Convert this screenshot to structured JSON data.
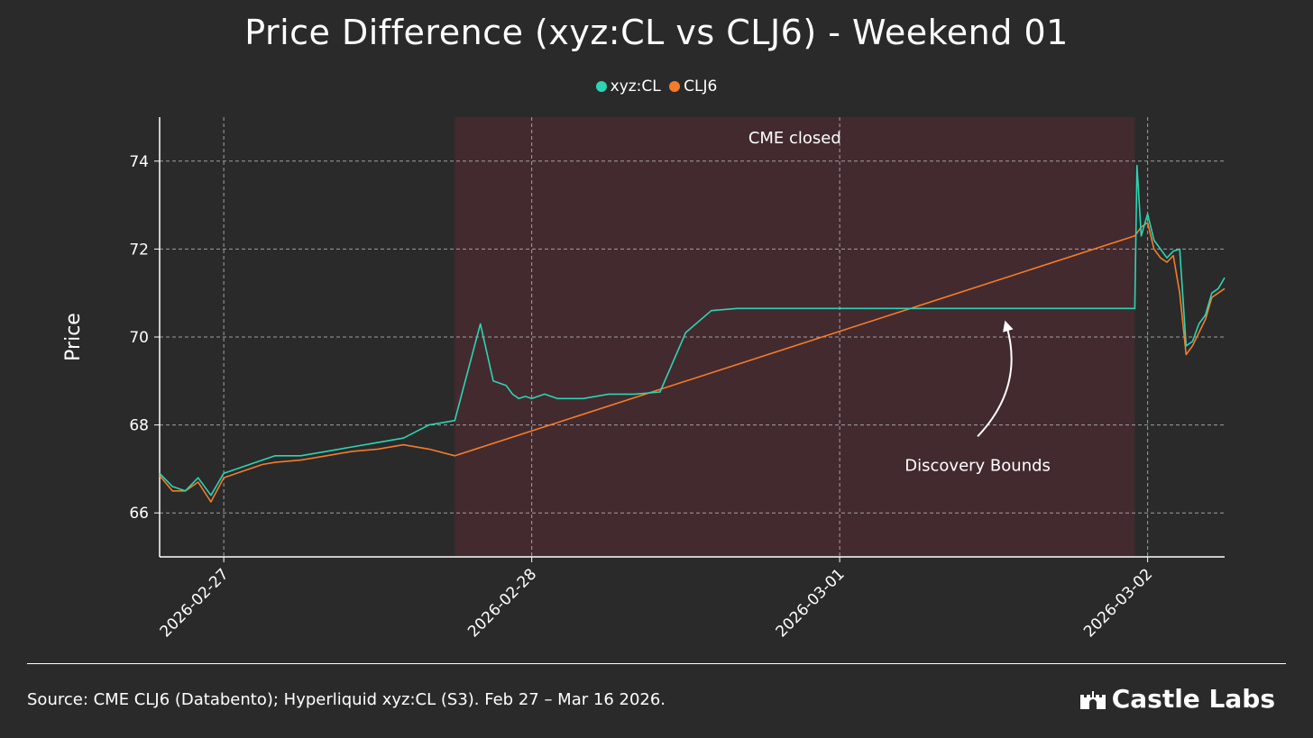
{
  "colors": {
    "background": "#2a2a2a",
    "xyz": "#2dd4b4",
    "clj6": "#f47c2a",
    "shade": "#432a2f",
    "grid": "#bdbdbd",
    "text": "#ffffff"
  },
  "footer": {
    "source": "Source: CME CLJ6 (Databento); Hyperliquid xyz:CL (S3). Feb 27 – Mar 16 2026.",
    "brand": "Castle Labs",
    "brand_icon": "castle-icon"
  },
  "chart_data": {
    "type": "line",
    "title": "Price Difference (xyz:CL vs CLJ6) - Weekend 01",
    "xlabel": "",
    "ylabel": "Price",
    "xlim": [
      "2026-02-26T19:00",
      "2026-03-02T06:00"
    ],
    "ylim": [
      65,
      75
    ],
    "yticks": [
      66,
      68,
      70,
      72,
      74
    ],
    "xticks": [
      "2026-02-27",
      "2026-02-28",
      "2026-03-01",
      "2026-03-02"
    ],
    "grid": true,
    "legend": {
      "position": "top-center",
      "entries": [
        "xyz:CL",
        "CLJ6"
      ]
    },
    "shaded_region": {
      "start": "2026-02-27T18:00",
      "end": "2026-03-01T23:00",
      "label": "CME closed"
    },
    "annotation": {
      "text": "Discovery Bounds",
      "points_to": {
        "x": "2026-03-01T13:00",
        "y": 70.3
      }
    },
    "series": [
      {
        "name": "xyz:CL",
        "x": [
          "2026-02-26T19:00",
          "2026-02-26T20:00",
          "2026-02-26T21:00",
          "2026-02-26T22:00",
          "2026-02-26T23:00",
          "2026-02-27T00:00",
          "2026-02-27T01:00",
          "2026-02-27T02:00",
          "2026-02-27T03:00",
          "2026-02-27T04:00",
          "2026-02-27T06:00",
          "2026-02-27T08:00",
          "2026-02-27T10:00",
          "2026-02-27T12:00",
          "2026-02-27T14:00",
          "2026-02-27T16:00",
          "2026-02-27T18:00",
          "2026-02-27T20:00",
          "2026-02-27T21:00",
          "2026-02-27T22:00",
          "2026-02-27T22:30",
          "2026-02-27T23:00",
          "2026-02-27T23:30",
          "2026-02-28T00:00",
          "2026-02-28T01:00",
          "2026-02-28T02:00",
          "2026-02-28T04:00",
          "2026-02-28T06:00",
          "2026-02-28T08:00",
          "2026-02-28T10:00",
          "2026-02-28T12:00",
          "2026-02-28T14:00",
          "2026-02-28T16:00",
          "2026-02-28T18:00",
          "2026-02-28T20:00",
          "2026-02-28T22:00",
          "2026-02-28T23:00",
          "2026-02-28T23:30",
          "2026-03-01T00:00",
          "2026-03-01T01:00",
          "2026-03-01T02:00",
          "2026-03-01T04:00",
          "2026-03-01T08:00",
          "2026-03-01T12:00",
          "2026-03-01T16:00",
          "2026-03-01T20:00",
          "2026-03-01T23:00",
          "2026-03-01T23:10",
          "2026-03-01T23:30",
          "2026-03-02T00:00",
          "2026-03-02T00:30",
          "2026-03-02T01:00",
          "2026-03-02T01:30",
          "2026-03-02T02:00",
          "2026-03-02T02:30",
          "2026-03-02T03:00",
          "2026-03-02T03:30",
          "2026-03-02T04:00",
          "2026-03-02T04:30",
          "2026-03-02T05:00",
          "2026-03-02T05:30",
          "2026-03-02T06:00"
        ],
        "values": [
          66.9,
          66.6,
          66.5,
          66.8,
          66.4,
          66.9,
          67.0,
          67.1,
          67.2,
          67.3,
          67.3,
          67.4,
          67.5,
          67.6,
          67.7,
          68.0,
          68.1,
          70.3,
          69.0,
          68.9,
          68.7,
          68.6,
          68.65,
          68.6,
          68.7,
          68.6,
          68.6,
          68.7,
          68.7,
          68.75,
          70.1,
          70.6,
          70.65,
          70.65,
          70.65,
          70.65,
          70.65,
          70.65,
          70.65,
          70.65,
          70.65,
          70.65,
          70.65,
          70.65,
          70.65,
          70.65,
          70.65,
          73.9,
          72.3,
          72.8,
          72.2,
          72.0,
          71.8,
          71.95,
          72.0,
          69.8,
          69.9,
          70.3,
          70.5,
          71.0,
          71.1,
          71.35
        ]
      },
      {
        "name": "CLJ6",
        "x": [
          "2026-02-26T19:00",
          "2026-02-26T20:00",
          "2026-02-26T21:00",
          "2026-02-26T22:00",
          "2026-02-26T23:00",
          "2026-02-27T00:00",
          "2026-02-27T01:00",
          "2026-02-27T02:00",
          "2026-02-27T03:00",
          "2026-02-27T04:00",
          "2026-02-27T06:00",
          "2026-02-27T08:00",
          "2026-02-27T10:00",
          "2026-02-27T12:00",
          "2026-02-27T14:00",
          "2026-02-27T16:00",
          "2026-02-27T18:00",
          "2026-03-01T23:00",
          "2026-03-01T23:30",
          "2026-03-02T00:00",
          "2026-03-02T00:30",
          "2026-03-02T01:00",
          "2026-03-02T01:30",
          "2026-03-02T02:00",
          "2026-03-02T02:30",
          "2026-03-02T03:00",
          "2026-03-02T03:30",
          "2026-03-02T04:00",
          "2026-03-02T04:30",
          "2026-03-02T05:00",
          "2026-03-02T05:30",
          "2026-03-02T06:00"
        ],
        "values": [
          66.85,
          66.5,
          66.5,
          66.7,
          66.25,
          66.8,
          66.9,
          67.0,
          67.1,
          67.15,
          67.2,
          67.3,
          67.4,
          67.45,
          67.55,
          67.45,
          67.3,
          72.3,
          72.5,
          72.6,
          72.0,
          71.8,
          71.7,
          71.85,
          71.0,
          69.6,
          69.8,
          70.1,
          70.4,
          70.9,
          71.0,
          71.1
        ]
      }
    ]
  }
}
